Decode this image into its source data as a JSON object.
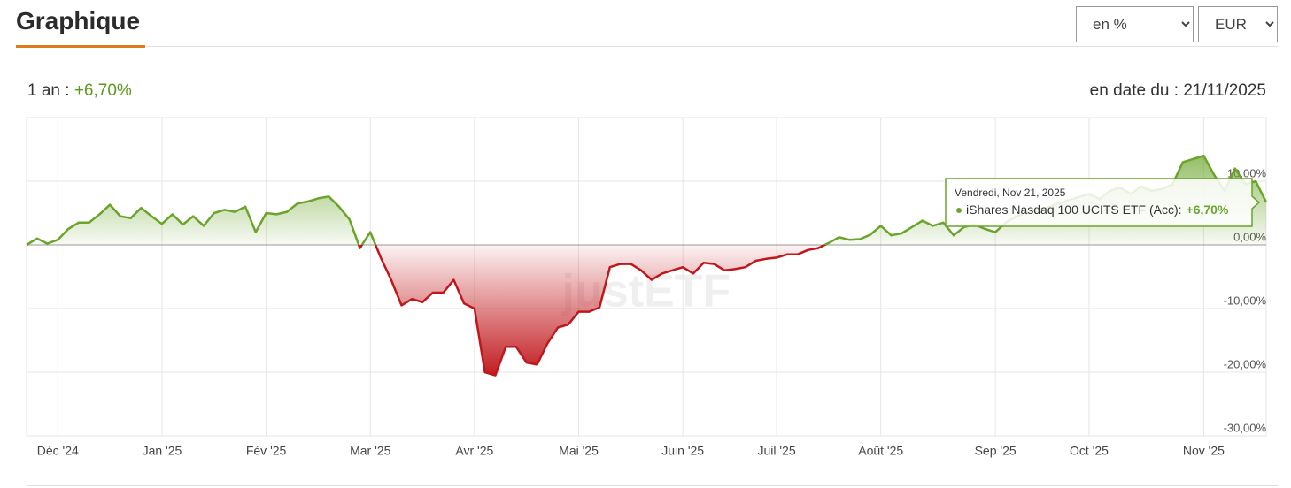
{
  "header": {
    "title": "Graphique",
    "unit_select": "en %",
    "currency_select": "EUR",
    "period_label": "1 an :",
    "period_return": "+6,70%",
    "as_of": "en date du : 21/11/2025"
  },
  "tooltip": {
    "date": "Vendredi, Nov 21, 2025",
    "series": "iShares Nasdaq 100 UCITS ETF (Acc):",
    "value": "+6,70%"
  },
  "watermark": "justETF",
  "chart_data": {
    "type": "area-line",
    "color_positive": "#6aa42a",
    "color_negative": "#c0171c",
    "categories": [
      null,
      null,
      null,
      "Déc '24",
      null,
      null,
      null,
      null,
      null,
      null,
      null,
      null,
      null,
      "Jan '25",
      null,
      null,
      null,
      null,
      null,
      null,
      null,
      null,
      null,
      "Fév '25",
      null,
      null,
      null,
      null,
      null,
      null,
      null,
      null,
      null,
      "Mar '25",
      null,
      null,
      null,
      null,
      null,
      null,
      null,
      null,
      null,
      "Avr '25",
      null,
      null,
      null,
      null,
      null,
      null,
      null,
      null,
      null,
      "Mai '25",
      null,
      null,
      null,
      null,
      null,
      null,
      null,
      null,
      null,
      "Juin '25",
      null,
      null,
      null,
      null,
      null,
      null,
      null,
      null,
      "Juil '25",
      null,
      null,
      null,
      null,
      null,
      null,
      null,
      null,
      null,
      "Août '25",
      null,
      null,
      null,
      null,
      null,
      null,
      null,
      null,
      null,
      null,
      "Sep '25",
      null,
      null,
      null,
      null,
      null,
      null,
      null,
      null,
      "Oct '25",
      null,
      null,
      null,
      null,
      null,
      null,
      null,
      null,
      null,
      null,
      "Nov '25",
      null,
      null,
      null,
      null,
      null,
      null
    ],
    "values": [
      0,
      1,
      0.2,
      0.8,
      2.5,
      3.5,
      3.5,
      4.8,
      6.3,
      4.5,
      4.2,
      5.8,
      4.5,
      3.3,
      4.8,
      3.2,
      4.5,
      3.0,
      5.0,
      5.5,
      5.2,
      6.0,
      2.0,
      5.0,
      4.8,
      5.2,
      6.5,
      6.8,
      7.3,
      7.6,
      6.0,
      4.0,
      -0.5,
      2.0,
      -2.0,
      -5.5,
      -9.5,
      -8.5,
      -9.0,
      -7.5,
      -7.5,
      -5.5,
      -9.2,
      -10.0,
      -20.0,
      -20.5,
      -16.0,
      -16.0,
      -18.5,
      -18.8,
      -15.5,
      -13.0,
      -12.5,
      -10.5,
      -10.5,
      -9.8,
      -3.5,
      -3.0,
      -3.0,
      -4.0,
      -5.5,
      -4.5,
      -4.0,
      -3.5,
      -4.5,
      -2.8,
      -3.0,
      -4.0,
      -3.8,
      -3.5,
      -2.5,
      -2.2,
      -2.0,
      -1.5,
      -1.5,
      -0.8,
      -0.5,
      0.3,
      1.2,
      0.8,
      0.9,
      1.6,
      3.0,
      1.5,
      1.8,
      2.8,
      3.8,
      3.0,
      3.5,
      1.5,
      2.8,
      3.2,
      2.5,
      2.0,
      3.5,
      4.5,
      5.0,
      5.5,
      5.8,
      6.5,
      7.0,
      7.5,
      8.0,
      7.2,
      8.5,
      9.0,
      8.0,
      9.2,
      8.5,
      8.8,
      9.5,
      13.0,
      13.5,
      14.0,
      11.0,
      8.5,
      12.0,
      9.5,
      10.0,
      6.7
    ],
    "ylim": [
      -30,
      20
    ],
    "yticks": [
      {
        "value": 10,
        "label": "10,00%"
      },
      {
        "value": 0,
        "label": "0,00%"
      },
      {
        "value": -10,
        "label": "-10,00%"
      },
      {
        "value": -20,
        "label": "-20,00%"
      },
      {
        "value": -30,
        "label": "-30,00%"
      }
    ],
    "grid": true
  }
}
